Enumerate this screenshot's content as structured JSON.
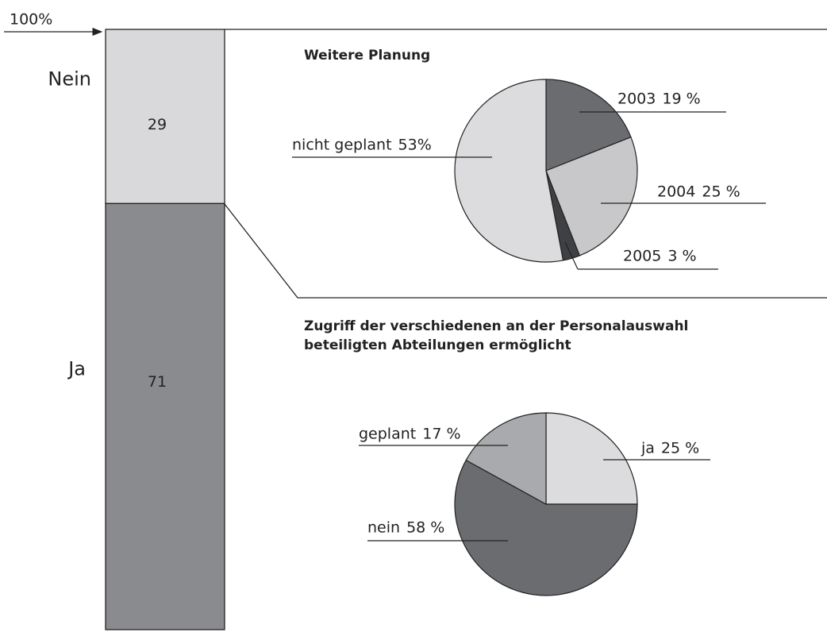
{
  "chart_data": [
    {
      "type": "bar",
      "stacked": true,
      "annotation": "100%",
      "series": [
        {
          "name": "Ja",
          "color": "#8a8b8f",
          "values": [
            71
          ]
        },
        {
          "name": "Nein",
          "color": "#d9d9db",
          "values": [
            29
          ]
        }
      ]
    },
    {
      "type": "pie",
      "title": "Weitere Planung",
      "categories": [
        "2003",
        "2004",
        "2005",
        "nicht geplant"
      ],
      "values": [
        19,
        25,
        3,
        53
      ],
      "value_labels": [
        "19 %",
        "25 %",
        "3 %",
        "53%"
      ],
      "colors": [
        "#6b6c70",
        "#c8c8ca",
        "#3f4043",
        "#dcdcde"
      ]
    },
    {
      "type": "pie",
      "title": [
        "Zugriff der verschiedenen an der Personalauswahl",
        "beteiligten Abteilungen ermöglicht"
      ],
      "categories": [
        "ja",
        "nein",
        "geplant"
      ],
      "values": [
        25,
        58,
        17
      ],
      "value_labels": [
        "25 %",
        "58 %",
        "17 %"
      ],
      "colors": [
        "#dcdcde",
        "#6b6c70",
        "#a9aaad"
      ]
    }
  ]
}
